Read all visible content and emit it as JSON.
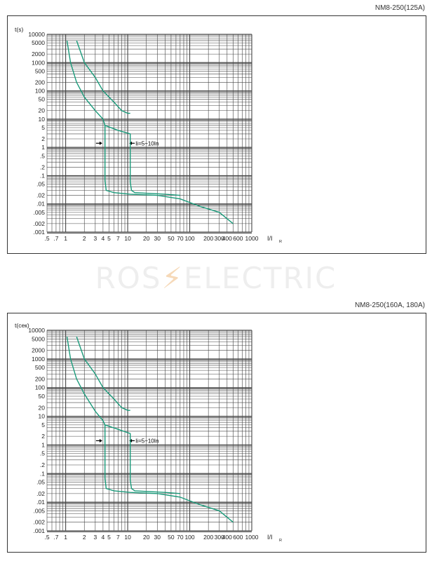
{
  "watermark": {
    "left": "ROS",
    "bolt": "⚡",
    "right": "ELECTRIC"
  },
  "colors": {
    "curve": "#1a9a7a",
    "grid": "#444444",
    "frame": "#333333"
  },
  "chart_data": [
    {
      "type": "line",
      "title": "NM8-250(125A)",
      "ylabel": "t(s)",
      "xlabel": "I/I",
      "xlabel_sub": "R",
      "x_scale": "log",
      "y_scale": "log",
      "xlim": [
        0.5,
        1000
      ],
      "ylim": [
        0.001,
        10000
      ],
      "grid": true,
      "x_ticks": [
        {
          "v": 0.5,
          "l": ".5"
        },
        {
          "v": 0.7,
          "l": ".7"
        },
        {
          "v": 1,
          "l": "1"
        },
        {
          "v": 2,
          "l": "2"
        },
        {
          "v": 3,
          "l": "3"
        },
        {
          "v": 4,
          "l": "4"
        },
        {
          "v": 5,
          "l": "5"
        },
        {
          "v": 7,
          "l": "7"
        },
        {
          "v": 10,
          "l": "10"
        },
        {
          "v": 20,
          "l": "20"
        },
        {
          "v": 30,
          "l": "30"
        },
        {
          "v": 50,
          "l": "50"
        },
        {
          "v": 70,
          "l": "70"
        },
        {
          "v": 100,
          "l": "100"
        },
        {
          "v": 200,
          "l": "200"
        },
        {
          "v": 300,
          "l": "300"
        },
        {
          "v": 400,
          "l": "400"
        },
        {
          "v": 600,
          "l": "600"
        },
        {
          "v": 1000,
          "l": "1000"
        }
      ],
      "y_ticks": [
        {
          "v": 10000,
          "l": "10000"
        },
        {
          "v": 5000,
          "l": "5000"
        },
        {
          "v": 2000,
          "l": "2000"
        },
        {
          "v": 1000,
          "l": "1000"
        },
        {
          "v": 500,
          "l": "500"
        },
        {
          "v": 200,
          "l": "200"
        },
        {
          "v": 100,
          "l": "100"
        },
        {
          "v": 50,
          "l": "50"
        },
        {
          "v": 20,
          "l": "20"
        },
        {
          "v": 10,
          "l": "10"
        },
        {
          "v": 5,
          "l": "5"
        },
        {
          "v": 2,
          "l": "2"
        },
        {
          "v": 1,
          "l": "1"
        },
        {
          "v": 0.5,
          "l": ".5"
        },
        {
          "v": 0.2,
          "l": ".2"
        },
        {
          "v": 0.1,
          "l": ".1"
        },
        {
          "v": 0.05,
          "l": ".05"
        },
        {
          "v": 0.02,
          "l": ".02"
        },
        {
          "v": 0.01,
          "l": ".01"
        },
        {
          "v": 0.005,
          "l": ".005"
        },
        {
          "v": 0.002,
          "l": ".002"
        },
        {
          "v": 0.001,
          "l": ".001"
        }
      ],
      "annotation": {
        "text": "Ii=5~10In",
        "x1": 4,
        "x2": 10,
        "y": 1.4
      },
      "series": [
        {
          "values": [
            [
              1.05,
              6000
            ],
            [
              1.2,
              1000
            ],
            [
              1.5,
              200
            ],
            [
              2,
              60
            ],
            [
              3,
              20
            ],
            [
              4,
              10
            ],
            [
              4.3,
              6
            ]
          ]
        },
        {
          "values": [
            [
              1.5,
              6000
            ],
            [
              2,
              1000
            ],
            [
              3,
              300
            ],
            [
              4,
              100
            ],
            [
              6,
              40
            ],
            [
              8,
              20
            ],
            [
              10,
              16
            ],
            [
              11,
              16
            ]
          ]
        },
        {
          "values": [
            [
              4.3,
              6
            ],
            [
              4.3,
              0.07
            ],
            [
              4.5,
              0.03
            ],
            [
              6,
              0.025
            ],
            [
              11,
              0.022
            ],
            [
              30,
              0.02
            ],
            [
              70,
              0.015
            ],
            [
              150,
              0.008
            ],
            [
              300,
              0.005
            ],
            [
              500,
              0.002
            ]
          ]
        },
        {
          "values": [
            [
              4.3,
              6
            ],
            [
              7,
              4
            ],
            [
              11,
              3
            ],
            [
              11,
              0.06
            ],
            [
              11.5,
              0.03
            ],
            [
              13,
              0.025
            ],
            [
              40,
              0.022
            ],
            [
              70,
              0.02
            ]
          ]
        }
      ]
    },
    {
      "type": "line",
      "title": "NM8-250(160A, 180A)",
      "ylabel": "t(сек)",
      "xlabel": "I/I",
      "xlabel_sub": "R",
      "x_scale": "log",
      "y_scale": "log",
      "xlim": [
        0.5,
        1000
      ],
      "ylim": [
        0.001,
        10000
      ],
      "grid": true,
      "x_ticks": [
        {
          "v": 0.5,
          "l": ".5"
        },
        {
          "v": 0.7,
          "l": ".7"
        },
        {
          "v": 1,
          "l": "1"
        },
        {
          "v": 2,
          "l": "2"
        },
        {
          "v": 3,
          "l": "3"
        },
        {
          "v": 4,
          "l": "4"
        },
        {
          "v": 5,
          "l": "5"
        },
        {
          "v": 7,
          "l": "7"
        },
        {
          "v": 10,
          "l": "10"
        },
        {
          "v": 20,
          "l": "20"
        },
        {
          "v": 30,
          "l": "30"
        },
        {
          "v": 50,
          "l": "50"
        },
        {
          "v": 70,
          "l": "70"
        },
        {
          "v": 100,
          "l": "100"
        },
        {
          "v": 200,
          "l": "200"
        },
        {
          "v": 300,
          "l": "300"
        },
        {
          "v": 400,
          "l": "400"
        },
        {
          "v": 600,
          "l": "600"
        },
        {
          "v": 1000,
          "l": "1000"
        }
      ],
      "y_ticks": [
        {
          "v": 10000,
          "l": "10000"
        },
        {
          "v": 5000,
          "l": "5000"
        },
        {
          "v": 2000,
          "l": "2000"
        },
        {
          "v": 1000,
          "l": "1000"
        },
        {
          "v": 500,
          "l": "500"
        },
        {
          "v": 200,
          "l": "200"
        },
        {
          "v": 100,
          "l": "100"
        },
        {
          "v": 50,
          "l": "50"
        },
        {
          "v": 20,
          "l": "20"
        },
        {
          "v": 10,
          "l": "10"
        },
        {
          "v": 5,
          "l": "5"
        },
        {
          "v": 2,
          "l": "2"
        },
        {
          "v": 1,
          "l": "1"
        },
        {
          "v": 0.5,
          "l": ".5"
        },
        {
          "v": 0.2,
          "l": ".2"
        },
        {
          "v": 0.1,
          "l": ".1"
        },
        {
          "v": 0.05,
          "l": ".05"
        },
        {
          "v": 0.02,
          "l": ".02"
        },
        {
          "v": 0.01,
          "l": ".01"
        },
        {
          "v": 0.005,
          "l": ".005"
        },
        {
          "v": 0.002,
          "l": ".002"
        },
        {
          "v": 0.001,
          "l": ".001"
        }
      ],
      "annotation": {
        "text": "Ii=5~10In",
        "x1": 4,
        "x2": 10,
        "y": 1.4
      },
      "series": [
        {
          "values": [
            [
              1.05,
              6000
            ],
            [
              1.2,
              1000
            ],
            [
              1.5,
              200
            ],
            [
              2,
              60
            ],
            [
              3,
              15
            ],
            [
              4,
              7
            ],
            [
              4.3,
              5
            ]
          ]
        },
        {
          "values": [
            [
              1.5,
              6000
            ],
            [
              2,
              1000
            ],
            [
              3,
              300
            ],
            [
              4,
              100
            ],
            [
              6,
              40
            ],
            [
              8,
              20
            ],
            [
              10,
              16
            ],
            [
              11,
              16
            ]
          ]
        },
        {
          "values": [
            [
              4.3,
              5
            ],
            [
              4.3,
              0.07
            ],
            [
              4.5,
              0.03
            ],
            [
              6,
              0.025
            ],
            [
              11,
              0.022
            ],
            [
              30,
              0.02
            ],
            [
              70,
              0.015
            ],
            [
              150,
              0.008
            ],
            [
              300,
              0.005
            ],
            [
              500,
              0.002
            ]
          ]
        },
        {
          "values": [
            [
              4.3,
              5
            ],
            [
              7,
              3.5
            ],
            [
              11,
              2.5
            ],
            [
              11,
              0.06
            ],
            [
              11.5,
              0.03
            ],
            [
              13,
              0.025
            ],
            [
              40,
              0.022
            ],
            [
              70,
              0.02
            ]
          ]
        }
      ]
    }
  ]
}
